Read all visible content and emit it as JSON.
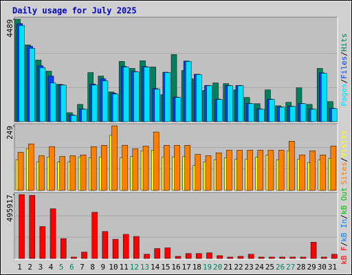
{
  "chart_data": [
    {
      "type": "bar",
      "title": "Daily usage for July 2025",
      "ylim": [
        0,
        4489
      ],
      "yticks": [
        4489
      ],
      "grid": true,
      "series": [
        {
          "name": "Hits",
          "color": "#00805c",
          "values": [
            4489,
            3367,
            2700,
            2214,
            1638,
            394,
            758,
            2153,
            2002,
            1304,
            2639,
            2335,
            2669,
            2396,
            1183,
            2942,
            2244,
            1880,
            1365,
            1699,
            1668,
            1395,
            1062,
            789,
            1395,
            698,
            849,
            1486,
            758,
            2335,
            880
          ]
        },
        {
          "name": "Files",
          "color": "#0040ff",
          "values": [
            4300,
            3300,
            2450,
            2000,
            1620,
            300,
            560,
            1650,
            1880,
            1250,
            2420,
            2200,
            2420,
            1450,
            2170,
            1080,
            2660,
            2080,
            1590,
            990,
            1590,
            1590,
            800,
            560,
            990,
            650,
            680,
            800,
            560,
            2140,
            590
          ]
        },
        {
          "name": "Pages",
          "color": "#00e0ff",
          "values": [
            4216,
            3215,
            2366,
            1699,
            1607,
            273,
            546,
            1607,
            1790,
            1213,
            2396,
            2184,
            2396,
            1426,
            2153,
            1062,
            2639,
            2062,
            1577,
            971,
            1577,
            1577,
            789,
            546,
            971,
            637,
            667,
            789,
            546,
            2123,
            576
          ]
        }
      ]
    },
    {
      "type": "bar",
      "ylim": [
        0,
        249
      ],
      "yticks": [
        249
      ],
      "grid": true,
      "series": [
        {
          "name": "Visits",
          "color": "#ffff00",
          "values": [
            118,
            161,
            110,
            129,
            110,
            110,
            129,
            126,
            129,
            212,
            126,
            131,
            153,
            155,
            129,
            129,
            131,
            96,
            110,
            118,
            126,
            120,
            120,
            129,
            137,
            118,
            153,
            120,
            107,
            118,
            123
          ]
        },
        {
          "name": "Sites",
          "color": "#ff8000",
          "values": [
            147,
            179,
            134,
            169,
            131,
            134,
            137,
            169,
            174,
            249,
            174,
            161,
            171,
            225,
            174,
            174,
            174,
            139,
            134,
            145,
            155,
            155,
            155,
            155,
            155,
            155,
            190,
            137,
            153,
            137,
            171
          ]
        }
      ]
    },
    {
      "type": "bar",
      "ylim": [
        0,
        495917
      ],
      "yticks": [
        495917
      ],
      "grid": true,
      "categories": [
        "1",
        "2",
        "3",
        "4",
        "5",
        "6",
        "7",
        "8",
        "9",
        "10",
        "11",
        "12",
        "13",
        "14",
        "15",
        "16",
        "17",
        "18",
        "19",
        "20",
        "21",
        "22",
        "23",
        "24",
        "25",
        "26",
        "27",
        "28",
        "29",
        "30",
        "31"
      ],
      "category_colors": [
        "#000000",
        "#000000",
        "#000000",
        "#000000",
        "#00805c",
        "#00805c",
        "#000000",
        "#000000",
        "#000000",
        "#000000",
        "#000000",
        "#00805c",
        "#00805c",
        "#000000",
        "#000000",
        "#000000",
        "#000000",
        "#000000",
        "#00805c",
        "#00805c",
        "#000000",
        "#000000",
        "#000000",
        "#000000",
        "#000000",
        "#00805c",
        "#00805c",
        "#000000",
        "#000000",
        "#000000",
        "#000000"
      ],
      "series": [
        {
          "name": "kB Out",
          "color": "#00c000",
          "values": [
            0,
            0,
            0,
            0,
            0,
            0,
            0,
            0,
            0,
            0,
            0,
            0,
            0,
            0,
            0,
            0,
            0,
            0,
            0,
            0,
            0,
            0,
            0,
            0,
            0,
            0,
            0,
            0,
            0,
            0,
            0
          ]
        },
        {
          "name": "kB In",
          "color": "#0080ff",
          "values": [
            0,
            0,
            0,
            0,
            0,
            0,
            0,
            0,
            0,
            0,
            0,
            0,
            0,
            0,
            0,
            0,
            0,
            0,
            0,
            0,
            0,
            0,
            0,
            0,
            0,
            0,
            0,
            0,
            0,
            0,
            0
          ]
        },
        {
          "name": "kB F",
          "color": "#ff0000",
          "values": [
            495917,
            490000,
            247958,
            385713,
            154285,
            11020,
            49592,
            358162,
            209387,
            148775,
            187346,
            170816,
            33061,
            77143,
            82653,
            16531,
            38571,
            38571,
            44081,
            22041,
            11020,
            16531,
            33061,
            11020,
            11020,
            11020,
            11020,
            11020,
            126238,
            11020,
            33061
          ]
        }
      ]
    }
  ]
}
